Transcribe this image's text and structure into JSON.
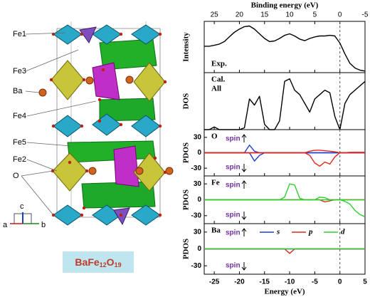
{
  "structure": {
    "labels": [
      "Fe1",
      "Fe3",
      "Ba",
      "Fe4",
      "Fe5",
      "Fe2",
      "O"
    ],
    "axes": [
      "c",
      "a",
      "b"
    ],
    "formula": [
      {
        "text": "BaFe"
      },
      {
        "text": "12",
        "sub": true
      },
      {
        "text": "O"
      },
      {
        "text": "19",
        "sub": true
      }
    ]
  },
  "chart_data": {
    "type": "line",
    "x_label": "Energy (eV)",
    "x2_label": "Binding energy (eV)",
    "xlim": [
      -27,
      5
    ],
    "xticks": [
      -25,
      -20,
      -15,
      -10,
      -5,
      0,
      5
    ],
    "x2ticks": [
      {
        "value": -25,
        "label": "25"
      },
      {
        "value": -20,
        "label": "20"
      },
      {
        "value": -15,
        "label": "15"
      },
      {
        "value": -10,
        "label": "10"
      },
      {
        "value": -5,
        "label": "5"
      },
      {
        "value": 0,
        "label": "0"
      },
      {
        "value": 5,
        "label": "-5"
      }
    ],
    "vline": 0,
    "x": [
      -27,
      -26,
      -25,
      -24,
      -23,
      -22,
      -21,
      -20,
      -19,
      -18,
      -17,
      -16,
      -15,
      -14,
      -13,
      -12,
      -11,
      -10,
      -9,
      -8,
      -7,
      -6,
      -5,
      -4,
      -3,
      -2,
      -1,
      0,
      1,
      2,
      3,
      4,
      5
    ],
    "panels": [
      {
        "labels": [
          "Exp."
        ],
        "label_corner": "bottom-left",
        "ylabel": "Intensity",
        "ylim": [
          0,
          165
        ],
        "series": [
          {
            "color": "#000000",
            "values": [
              85,
              85,
              88,
              92,
              100,
              115,
              130,
              140,
              148,
              150,
              140,
              125,
              110,
              100,
              102,
              110,
              120,
              125,
              118,
              108,
              103,
              110,
              115,
              118,
              118,
              120,
              118,
              95,
              60,
              30,
              15,
              8,
              5
            ]
          }
        ]
      },
      {
        "labels": [
          "Cal.",
          "All"
        ],
        "label_corner": "top-left",
        "ylabel": "DOS",
        "ylim": [
          0,
          65
        ],
        "series": [
          {
            "color": "#000000",
            "values": [
              0,
              0,
              3,
              0,
              0,
              0,
              0,
              0,
              2,
              35,
              28,
              38,
              6,
              0,
              0,
              10,
              55,
              58,
              45,
              40,
              30,
              20,
              35,
              40,
              45,
              42,
              15,
              0,
              30,
              40,
              45,
              50,
              55
            ]
          }
        ]
      },
      {
        "labels": [
          "O"
        ],
        "label_corner": "top-left",
        "ylabel": "PDOS",
        "ylim": [
          -45,
          45
        ],
        "yticks": [
          30,
          0,
          -30
        ],
        "spin": [
          "spin",
          "spin"
        ],
        "series": [
          {
            "color": "#1f3fd0",
            "values": [
              0,
              0,
              0,
              0,
              0,
              0,
              0,
              0,
              0,
              15,
              3,
              0,
              0,
              0,
              0,
              0,
              0,
              0,
              0,
              0,
              0,
              0,
              0,
              0,
              0,
              0,
              0,
              0,
              0,
              0,
              0,
              0,
              0
            ]
          },
          {
            "color": "#1f3fd0",
            "values": [
              0,
              0,
              0,
              0,
              0,
              0,
              0,
              0,
              0,
              0,
              -16,
              -5,
              0,
              0,
              0,
              0,
              0,
              0,
              0,
              0,
              0,
              0,
              0,
              0,
              0,
              0,
              0,
              0,
              0,
              0,
              0,
              0,
              0
            ]
          },
          {
            "color": "#e0261b",
            "values": [
              0,
              0,
              0,
              0,
              0,
              0,
              0,
              0,
              0,
              0,
              0,
              0,
              0,
              0,
              0,
              0,
              0,
              0,
              0,
              0,
              0,
              3,
              5,
              5,
              4,
              3,
              2,
              0,
              0,
              1,
              1,
              1,
              1
            ]
          },
          {
            "color": "#e0261b",
            "values": [
              0,
              0,
              0,
              0,
              0,
              0,
              0,
              0,
              0,
              0,
              0,
              0,
              0,
              0,
              0,
              0,
              0,
              0,
              0,
              0,
              0,
              -5,
              -20,
              -26,
              -18,
              -22,
              -8,
              0,
              0,
              0,
              0,
              0,
              0
            ]
          }
        ]
      },
      {
        "labels": [
          "Fe"
        ],
        "label_corner": "top-left",
        "ylabel": "PDOS",
        "ylim": [
          -45,
          45
        ],
        "yticks": [
          30,
          0,
          -30
        ],
        "spin": [
          "spin",
          "spin"
        ],
        "series": [
          {
            "color": "#e0261b",
            "values": [
              0,
              0,
              0,
              0,
              0,
              0,
              0,
              0,
              0,
              0,
              0,
              0,
              0,
              0,
              0,
              0,
              0,
              0,
              0,
              0,
              0,
              0,
              0,
              0,
              -4,
              -2,
              0,
              0,
              0,
              0,
              0,
              0,
              0
            ]
          },
          {
            "color": "#2fcf2f",
            "values": [
              0,
              0,
              0,
              0,
              0,
              0,
              0,
              0,
              0,
              0,
              0,
              0,
              0,
              0,
              0,
              0,
              5,
              30,
              28,
              3,
              0,
              0,
              0,
              5,
              4,
              0,
              0,
              0,
              0,
              0,
              0,
              0,
              0
            ]
          },
          {
            "color": "#2fcf2f",
            "values": [
              0,
              0,
              0,
              0,
              0,
              0,
              0,
              0,
              0,
              0,
              0,
              0,
              0,
              0,
              0,
              0,
              0,
              0,
              0,
              0,
              0,
              0,
              0,
              0,
              0,
              0,
              0,
              0,
              -3,
              -8,
              -20,
              -28,
              -32
            ]
          }
        ]
      },
      {
        "labels": [
          "Ba"
        ],
        "label_corner": "top-left",
        "ylabel": "PDOS",
        "ylim": [
          -45,
          45
        ],
        "yticks": [
          30,
          0,
          -30
        ],
        "spin": [
          "spin",
          "spin"
        ],
        "series": [
          {
            "name": "s",
            "color": "#1f3fd0",
            "values": [
              0,
              0,
              0,
              0,
              0,
              0,
              0,
              0,
              0,
              0,
              0,
              0,
              0,
              0,
              0,
              0,
              0,
              0,
              0,
              0,
              0,
              0,
              0,
              0,
              0,
              0,
              0,
              0,
              0,
              0,
              0,
              0,
              0
            ]
          },
          {
            "name": "p",
            "color": "#e0261b",
            "values": [
              0,
              0,
              0,
              0,
              0,
              0,
              0,
              0,
              0,
              0,
              0,
              0,
              0,
              0,
              0,
              0,
              0,
              -8,
              0,
              0,
              0,
              0,
              0,
              0,
              0,
              0,
              0,
              0,
              0,
              0,
              0,
              0,
              0
            ]
          },
          {
            "name": "d",
            "color": "#2fcf2f",
            "values": [
              0,
              0,
              0,
              0,
              0,
              0,
              0,
              0,
              0,
              0,
              0,
              0,
              0,
              0,
              0,
              0,
              0,
              0,
              0,
              0,
              0,
              0,
              0,
              0,
              0,
              0,
              0,
              0,
              0,
              0,
              0,
              0,
              0
            ]
          }
        ]
      }
    ]
  }
}
